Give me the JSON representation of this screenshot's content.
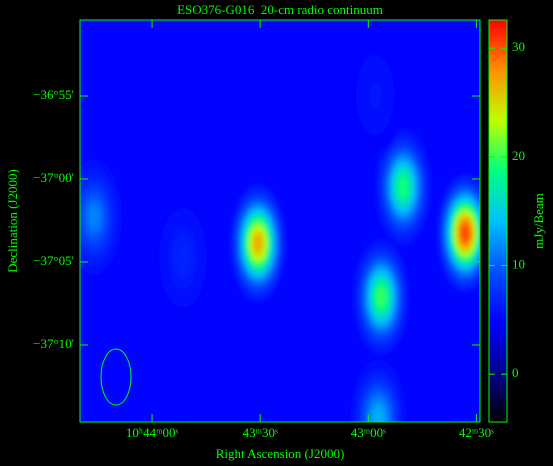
{
  "chart_data": {
    "type": "image",
    "title": "ESO376-G016  20-cm radio continuum",
    "xlabel": "Right Ascension (J2000)",
    "ylabel": "Declination (J2000)",
    "colorbar_label": "mJy/Beam",
    "xlim": [
      2660,
      2549
    ],
    "xticks": [
      {
        "value": 2640,
        "label": "10ʰ44ᵐ00ˢ"
      },
      {
        "value": 2610,
        "label": "43ᵐ30ˢ"
      },
      {
        "value": 2580,
        "label": "43ᵐ00ˢ"
      },
      {
        "value": 2550,
        "label": "42ᵐ30ˢ"
      }
    ],
    "ylim": [
      -37.244,
      -36.8404
    ],
    "yticks": [
      {
        "value": -36.9167,
        "label": "−36°55'"
      },
      {
        "value": -37.0,
        "label": "−37°00'"
      },
      {
        "value": -37.0833,
        "label": "−37°05'"
      },
      {
        "value": -37.1667,
        "label": "−37°10'"
      }
    ],
    "clim": [
      -4.4,
      32.6
    ],
    "cticks": [
      0,
      10,
      20,
      30
    ],
    "colormap": [
      "#000000",
      "#000090",
      "#0000ff",
      "#0050ff",
      "#00c0ff",
      "#00ff80",
      "#c0ff00",
      "#ff9000",
      "#ff0000"
    ],
    "background": 5,
    "axis_color": "#00ff00",
    "sources": [
      {
        "ra": 2656.1,
        "dec": -37.0382,
        "peak": 12
      },
      {
        "ra": 2610.6,
        "dec": -37.0643,
        "peak": 28
      },
      {
        "ra": 2570.3,
        "dec": -37.0081,
        "peak": 20
      },
      {
        "ra": 2576.4,
        "dec": -37.1185,
        "peak": 21
      },
      {
        "ra": 2553.1,
        "dec": -37.0543,
        "peak": 32
      },
      {
        "ra": 2577.2,
        "dec": -37.24,
        "peak": 14
      },
      {
        "ra": 2631.4,
        "dec": -37.0793,
        "peak": 7
      },
      {
        "ra": 2578.1,
        "dec": -36.9157,
        "peak": 6
      }
    ]
  }
}
